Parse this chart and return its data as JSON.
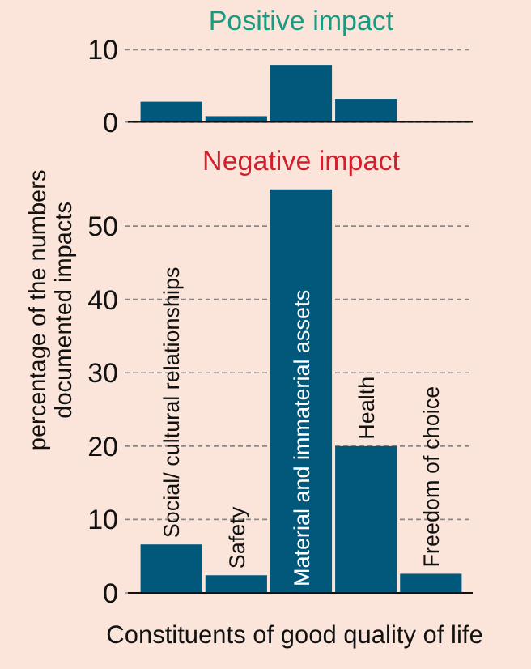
{
  "chart_data": [
    {
      "type": "bar",
      "title": "Positive impact",
      "categories": [
        null,
        null,
        null,
        null,
        null
      ],
      "values": [
        2.8,
        0.8,
        7.9,
        3.2,
        0
      ],
      "color": "#01587a",
      "ylim": [
        0,
        10
      ],
      "yticks": [
        0,
        10
      ],
      "grid": "y",
      "tick_labels": "y"
    },
    {
      "type": "bar",
      "title": "Negative impact",
      "xlabel": "Constituents of good quality of life",
      "ylabel": "percentage of the numbers\ndocumented impacts",
      "categories": [
        "Social/ cultural relationships",
        "Safety",
        "Material and immaterial assets",
        "Health",
        "Freedom of choice"
      ],
      "values": [
        6.6,
        2.4,
        55,
        20,
        2.6
      ],
      "color": "#01587a",
      "ylim": [
        0,
        55
      ],
      "yticks": [
        0,
        10,
        20,
        30,
        40,
        50
      ],
      "grid": "y"
    }
  ]
}
